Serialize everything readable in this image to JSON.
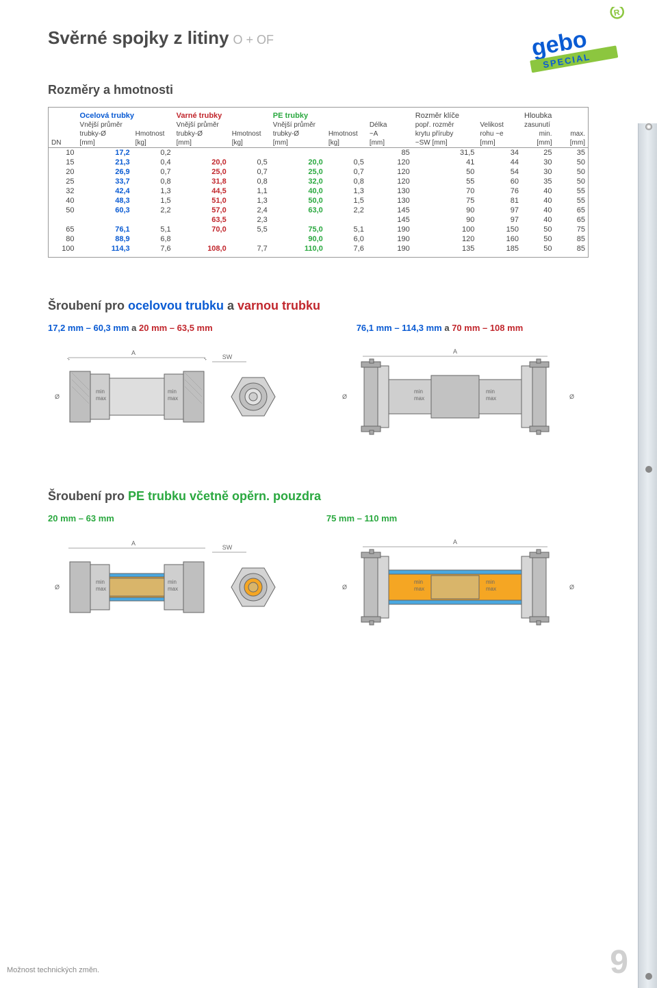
{
  "page": {
    "title": "Svěrné spojky z litiny",
    "title_suffix": "O + OF",
    "subtitle": "Rozměry a hmotnosti",
    "footer_left": "Možnost technických změn.",
    "page_number": "9"
  },
  "logo": {
    "brand": "gebo",
    "sub": "SPECIAL",
    "bar_color": "#8cc63f",
    "letter_color": "#0a5bd3",
    "reg_color": "#8cc63f"
  },
  "table": {
    "groups": [
      {
        "label": "Ocelová trubky",
        "color": "#0a5bd3"
      },
      {
        "label": "Varné trubky",
        "color": "#c1272d"
      },
      {
        "label": "PE trubky",
        "color": "#2aa83f"
      }
    ],
    "header_lines": {
      "dn": "DN",
      "outer_dia": "Vnější průměr",
      "tube_o": "trubky-Ø",
      "mm": "[mm]",
      "weight": "Hmotnost",
      "kg": "[kg]",
      "length": "Délka",
      "a": "~A",
      "wrench": "Rozměr klíče",
      "wrench2": "popř. rozměr",
      "wrench3": "krytu příruby",
      "sw": "~SW [mm]",
      "corner": "Velikost",
      "corner2": "rohu  ~e",
      "depth": "Hloubka",
      "depth2": "zasunutí",
      "min": "min.",
      "max": "max."
    },
    "rows": [
      {
        "dn": "10",
        "s_o": "17,2",
        "s_w": "0,2",
        "v_o": "",
        "v_w": "",
        "p_o": "",
        "p_w": "",
        "a": "85",
        "sw": "31,5",
        "e": "34",
        "min": "25",
        "max": "35"
      },
      {
        "dn": "15",
        "s_o": "21,3",
        "s_w": "0,4",
        "v_o": "20,0",
        "v_w": "0,5",
        "p_o": "20,0",
        "p_w": "0,5",
        "a": "120",
        "sw": "41",
        "e": "44",
        "min": "30",
        "max": "50"
      },
      {
        "dn": "20",
        "s_o": "26,9",
        "s_w": "0,7",
        "v_o": "25,0",
        "v_w": "0,7",
        "p_o": "25,0",
        "p_w": "0,7",
        "a": "120",
        "sw": "50",
        "e": "54",
        "min": "30",
        "max": "50"
      },
      {
        "dn": "25",
        "s_o": "33,7",
        "s_w": "0,8",
        "v_o": "31,8",
        "v_w": "0,8",
        "p_o": "32,0",
        "p_w": "0,8",
        "a": "120",
        "sw": "55",
        "e": "60",
        "min": "35",
        "max": "50"
      },
      {
        "dn": "32",
        "s_o": "42,4",
        "s_w": "1,3",
        "v_o": "44,5",
        "v_w": "1,1",
        "p_o": "40,0",
        "p_w": "1,3",
        "a": "130",
        "sw": "70",
        "e": "76",
        "min": "40",
        "max": "55"
      },
      {
        "dn": "40",
        "s_o": "48,3",
        "s_w": "1,5",
        "v_o": "51,0",
        "v_w": "1,3",
        "p_o": "50,0",
        "p_w": "1,5",
        "a": "130",
        "sw": "75",
        "e": "81",
        "min": "40",
        "max": "55"
      },
      {
        "dn": "50",
        "s_o": "60,3",
        "s_w": "2,2",
        "v_o": "57,0",
        "v_w": "2,4",
        "p_o": "63,0",
        "p_w": "2,2",
        "a": "145",
        "sw": "90",
        "e": "97",
        "min": "40",
        "max": "65"
      },
      {
        "dn": "",
        "s_o": "",
        "s_w": "",
        "v_o": "63,5",
        "v_w": "2,3",
        "p_o": "",
        "p_w": "",
        "a": "145",
        "sw": "90",
        "e": "97",
        "min": "40",
        "max": "65"
      },
      {
        "dn": "65",
        "s_o": "76,1",
        "s_w": "5,1",
        "v_o": "70,0",
        "v_w": "5,5",
        "p_o": "75,0",
        "p_w": "5,1",
        "a": "190",
        "sw": "100",
        "e": "150",
        "min": "50",
        "max": "75"
      },
      {
        "dn": "80",
        "s_o": "88,9",
        "s_w": "6,8",
        "v_o": "",
        "v_w": "",
        "p_o": "90,0",
        "p_w": "6,0",
        "a": "190",
        "sw": "120",
        "e": "160",
        "min": "50",
        "max": "85"
      },
      {
        "dn": "100",
        "s_o": "114,3",
        "s_w": "7,6",
        "v_o": "108,0",
        "v_w": "7,7",
        "p_o": "110,0",
        "p_w": "7,6",
        "a": "190",
        "sw": "135",
        "e": "185",
        "min": "50",
        "max": "85"
      }
    ]
  },
  "section1": {
    "title_pre": "Šroubení pro ",
    "title_steel": "ocelovou trubku",
    "title_mid": " a ",
    "title_varn": "varnou trubku",
    "range1_a": "17,2 mm – 60,3 mm",
    "range1_mid": " a ",
    "range1_b": "20 mm – 63,5 mm",
    "range2_a": "76,1 mm – 114,3 mm",
    "range2_mid": " a ",
    "range2_b": "70 mm – 108 mm"
  },
  "section2": {
    "title_pre": "Šroubení pro ",
    "title_pe": "PE trubku včetně opěrn. pouzdra",
    "range1_a": "20 mm – 63 mm",
    "range2_a": "75 mm – 110 mm"
  },
  "diagram_labels": {
    "A": "A",
    "SW": "SW",
    "min": "min",
    "max": "max",
    "O": "Ø"
  },
  "colors": {
    "steel": "#0a5bd3",
    "varn": "#c1272d",
    "pe": "#2aa83f",
    "text": "#4a4a4a",
    "border": "#999999",
    "pipe_gray": "#b8b8b8",
    "pipe_dark": "#8a8a8a",
    "pipe_blue": "#4aa8e0",
    "pipe_yellow": "#f5a623",
    "pipe_brass": "#d9b56a"
  }
}
